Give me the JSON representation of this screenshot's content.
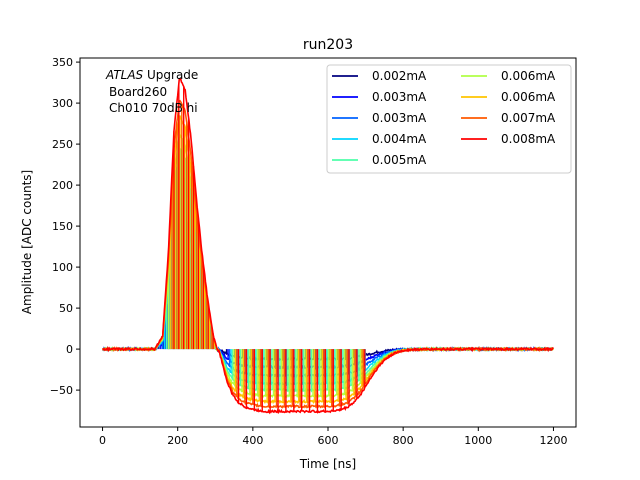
{
  "chart_data": {
    "type": "line",
    "title": "run203",
    "xlabel": "Time [ns]",
    "ylabel": "Amplitude [ADC counts]",
    "xlim": [
      -60,
      1260
    ],
    "ylim": [
      -95,
      355
    ],
    "xticks": [
      0,
      200,
      400,
      600,
      800,
      1000,
      1200
    ],
    "yticks": [
      -50,
      0,
      50,
      100,
      150,
      200,
      250,
      300,
      350
    ],
    "grid": false,
    "legend": "top-right",
    "legend_columns": 2,
    "annotation": {
      "italic": "ATLAS",
      "rest": " Upgrade",
      "line2": "Board260",
      "line3": "Ch010 70dB hi"
    },
    "pulse_shape": {
      "x": [
        0,
        140,
        160,
        175,
        190,
        205,
        220,
        235,
        250,
        265,
        280,
        295,
        310,
        320,
        330,
        345,
        360,
        380,
        400,
        430,
        460,
        500,
        550,
        600,
        630,
        650,
        670,
        690,
        710,
        730,
        750,
        770,
        790,
        810,
        840,
        880,
        950,
        1050,
        1200
      ],
      "y_normalized": [
        0,
        0,
        0.05,
        0.35,
        0.8,
        1.0,
        0.95,
        0.78,
        0.55,
        0.35,
        0.18,
        0.05,
        -0.03,
        -0.25,
        -0.5,
        -0.72,
        -0.85,
        -0.93,
        -0.97,
        -1.0,
        -1.0,
        -1.0,
        -1.0,
        -1.0,
        -0.98,
        -0.94,
        -0.85,
        -0.7,
        -0.5,
        -0.32,
        -0.18,
        -0.09,
        -0.04,
        -0.015,
        -0.005,
        0,
        0,
        0,
        0
      ]
    },
    "series": [
      {
        "name": "0.002mA",
        "color": "#00007f",
        "peak": 115,
        "trough": -12
      },
      {
        "name": "0.003mA",
        "color": "#0000ff",
        "peak": 140,
        "trough": -22
      },
      {
        "name": "0.003mA",
        "color": "#0063ff",
        "peak": 170,
        "trough": -32
      },
      {
        "name": "0.004mA",
        "color": "#00d4ff",
        "peak": 215,
        "trough": -42
      },
      {
        "name": "0.005mA",
        "color": "#4effa9",
        "peak": 245,
        "trough": -50
      },
      {
        "name": "0.006mA",
        "color": "#b1ff46",
        "peak": 262,
        "trough": -57
      },
      {
        "name": "0.006mA",
        "color": "#ffc400",
        "peak": 285,
        "trough": -64
      },
      {
        "name": "0.007mA",
        "color": "#ff5900",
        "peak": 305,
        "trough": -70
      },
      {
        "name": "0.008mA",
        "color": "#ff0000",
        "peak": 332,
        "trough": -76
      }
    ]
  }
}
